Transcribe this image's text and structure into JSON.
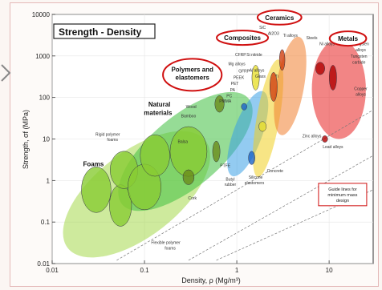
{
  "chart_data": {
    "type": "scatter",
    "title": "Strength - Density",
    "xlabel": "Density, ρ (Mg/m³)",
    "ylabel": "Strength, σf (MPa)",
    "xscale": "log",
    "yscale": "log",
    "xlim": [
      0.01,
      30
    ],
    "ylim": [
      0.01,
      10000
    ],
    "x_ticks": [
      {
        "v": 0.01,
        "label": "0.01"
      },
      {
        "v": 0.1,
        "label": "0.1"
      },
      {
        "v": 1,
        "label": "1"
      },
      {
        "v": 10,
        "label": "10"
      }
    ],
    "y_ticks": [
      {
        "v": 0.01,
        "label": "0.01"
      },
      {
        "v": 0.1,
        "label": "0.1"
      },
      {
        "v": 1,
        "label": "1"
      },
      {
        "v": 10,
        "label": "10"
      },
      {
        "v": 100,
        "label": "100"
      },
      {
        "v": 1000,
        "label": "1000"
      },
      {
        "v": 10000,
        "label": "10000"
      }
    ],
    "families": [
      {
        "name": "Foams",
        "color": "#a6d84c",
        "x": [
          0.015,
          0.45
        ],
        "y": [
          0.012,
          18
        ],
        "angle": -38
      },
      {
        "name": "Natural materials",
        "color": "#3fbf3f",
        "x": [
          0.07,
          1.1
        ],
        "y": [
          0.1,
          250
        ],
        "angle": -40
      },
      {
        "name": "Polymers and elastomers",
        "color": "#3aa0e6",
        "x": [
          0.75,
          2.3
        ],
        "y": [
          1.2,
          150
        ],
        "angle": -70
      },
      {
        "name": "Composites",
        "color": "#f0d020",
        "x": [
          1.4,
          3.4
        ],
        "y": [
          1,
          1000
        ],
        "angle": -80
      },
      {
        "name": "Ceramics",
        "color": "#f08030",
        "x": [
          2.2,
          6.5
        ],
        "y": [
          12,
          3000
        ],
        "angle": -80
      },
      {
        "name": "Metals",
        "color": "#e82020",
        "x": [
          6.5,
          25
        ],
        "y": [
          10,
          2500
        ],
        "angle": 0
      }
    ],
    "family_labels": [
      {
        "text": "Foams",
        "x": 0.028,
        "y": 2.2
      },
      {
        "text": "Natural",
        "x": 0.145,
        "y": 60
      },
      {
        "text": "materials",
        "x": 0.14,
        "y": 38
      }
    ],
    "circled_labels": [
      {
        "text": "Ceramics",
        "x": 2.9,
        "y": 7400
      },
      {
        "text": "Composites",
        "x": 1.15,
        "y": 2400
      },
      {
        "text": "Polymers and",
        "x": 0.33,
        "y": 420
      },
      {
        "text": "elastomers",
        "x": 0.33,
        "y": 270
      },
      {
        "text": "Metals",
        "x": 16,
        "y": 2300
      }
    ],
    "annotations": [
      {
        "text": "Rigid polymer",
        "x": 0.04,
        "y": 12
      },
      {
        "text": "foams",
        "x": 0.045,
        "y": 9
      },
      {
        "text": "Cork",
        "x": 0.33,
        "y": 0.35
      },
      {
        "text": "Flexible polymer",
        "x": 0.17,
        "y": 0.03
      },
      {
        "text": "foams",
        "x": 0.19,
        "y": 0.022
      },
      {
        "text": "Balsa",
        "x": 0.26,
        "y": 8
      },
      {
        "text": "Wood",
        "x": 0.32,
        "y": 55
      },
      {
        "text": "Bamboo",
        "x": 0.3,
        "y": 33
      },
      {
        "text": "PTFE",
        "x": 0.75,
        "y": 2.1
      },
      {
        "text": "Butyl",
        "x": 0.85,
        "y": 1
      },
      {
        "text": "rubber",
        "x": 0.85,
        "y": 0.75
      },
      {
        "text": "Silicone",
        "x": 1.6,
        "y": 1.1
      },
      {
        "text": "elastomers",
        "x": 1.55,
        "y": 0.82
      },
      {
        "text": "Concrete",
        "x": 2.6,
        "y": 1.6
      },
      {
        "text": "Zinc alloys",
        "x": 6.5,
        "y": 11
      },
      {
        "text": "Lead alloys",
        "x": 11,
        "y": 6
      },
      {
        "text": "Tungsten",
        "x": 22,
        "y": 1800
      },
      {
        "text": "alloys",
        "x": 22,
        "y": 1300
      },
      {
        "text": "Tungsten",
        "x": 21,
        "y": 900
      },
      {
        "text": "carbide",
        "x": 21,
        "y": 650
      },
      {
        "text": "Copper",
        "x": 22,
        "y": 150
      },
      {
        "text": "alloys",
        "x": 22,
        "y": 110
      },
      {
        "text": "Ti alloys",
        "x": 3.8,
        "y": 2900
      },
      {
        "text": "Steels",
        "x": 6.5,
        "y": 2500
      },
      {
        "text": "Ni alloys",
        "x": 9.5,
        "y": 1800
      },
      {
        "text": "SiC",
        "x": 1.9,
        "y": 4500
      },
      {
        "text": "Al2O3",
        "x": 2.5,
        "y": 3200
      },
      {
        "text": "CFRP",
        "x": 1.1,
        "y": 1000
      },
      {
        "text": "Si nitride",
        "x": 1.55,
        "y": 1000
      },
      {
        "text": "Mg alloys",
        "x": 1.0,
        "y": 600
      },
      {
        "text": "GFRP",
        "x": 1.2,
        "y": 400
      },
      {
        "text": "PEEK",
        "x": 1.05,
        "y": 280
      },
      {
        "text": "PET",
        "x": 0.95,
        "y": 200
      },
      {
        "text": "PA",
        "x": 0.9,
        "y": 140
      },
      {
        "text": "PC",
        "x": 0.83,
        "y": 100
      },
      {
        "text": "PMMA",
        "x": 0.75,
        "y": 75
      },
      {
        "text": "Al alloys",
        "x": 1.65,
        "y": 420
      },
      {
        "text": "Ti",
        "x": 2.7,
        "y": 300
      },
      {
        "text": "Glass",
        "x": 1.8,
        "y": 300
      }
    ],
    "guide_box": {
      "lines": [
        "Guide lines for",
        "minimum mass",
        "design"
      ],
      "x": 14,
      "y": 0.6
    },
    "points": [
      {
        "series": "Foams",
        "x": 0.03,
        "y": 0.6,
        "rx": 0.16,
        "ry": 0.55
      },
      {
        "series": "Foams",
        "x": 0.055,
        "y": 0.25,
        "rx": 0.12,
        "ry": 0.5
      },
      {
        "series": "Foams",
        "x": 0.06,
        "y": 1.8,
        "rx": 0.15,
        "ry": 0.45
      },
      {
        "series": "Foams",
        "x": 0.1,
        "y": 0.7,
        "rx": 0.18,
        "ry": 0.55
      },
      {
        "series": "Foams",
        "x": 0.13,
        "y": 4,
        "rx": 0.16,
        "ry": 0.5
      },
      {
        "series": "Foams",
        "x": 0.3,
        "y": 5,
        "rx": 0.2,
        "ry": 0.6
      },
      {
        "series": "Natural materials",
        "x": 0.3,
        "y": 1.2,
        "rx": 0.06,
        "ry": 0.18
      },
      {
        "series": "Natural materials",
        "x": 0.6,
        "y": 5,
        "rx": 0.04,
        "ry": 0.25
      },
      {
        "series": "Natural materials",
        "x": 0.65,
        "y": 70,
        "rx": 0.05,
        "ry": 0.2
      },
      {
        "series": "Polymers and elastomers",
        "x": 1.2,
        "y": 60,
        "rx": 0.03,
        "ry": 0.08
      },
      {
        "series": "Polymers and elastomers",
        "x": 1.45,
        "y": 3.5,
        "rx": 0.035,
        "ry": 0.16
      },
      {
        "series": "Composites",
        "x": 1.6,
        "y": 300,
        "rx": 0.04,
        "ry": 0.3
      },
      {
        "series": "Composites",
        "x": 1.9,
        "y": 20,
        "rx": 0.04,
        "ry": 0.12
      },
      {
        "series": "Ceramics",
        "x": 2.5,
        "y": 180,
        "rx": 0.04,
        "ry": 0.35
      },
      {
        "series": "Ceramics",
        "x": 3.1,
        "y": 800,
        "rx": 0.03,
        "ry": 0.25
      },
      {
        "series": "Metals",
        "x": 8,
        "y": 500,
        "rx": 0.05,
        "ry": 0.15
      },
      {
        "series": "Metals",
        "x": 11,
        "y": 300,
        "rx": 0.04,
        "ry": 0.3
      },
      {
        "series": "Metals",
        "x": 9,
        "y": 10,
        "rx": 0.03,
        "ry": 0.08
      }
    ]
  }
}
